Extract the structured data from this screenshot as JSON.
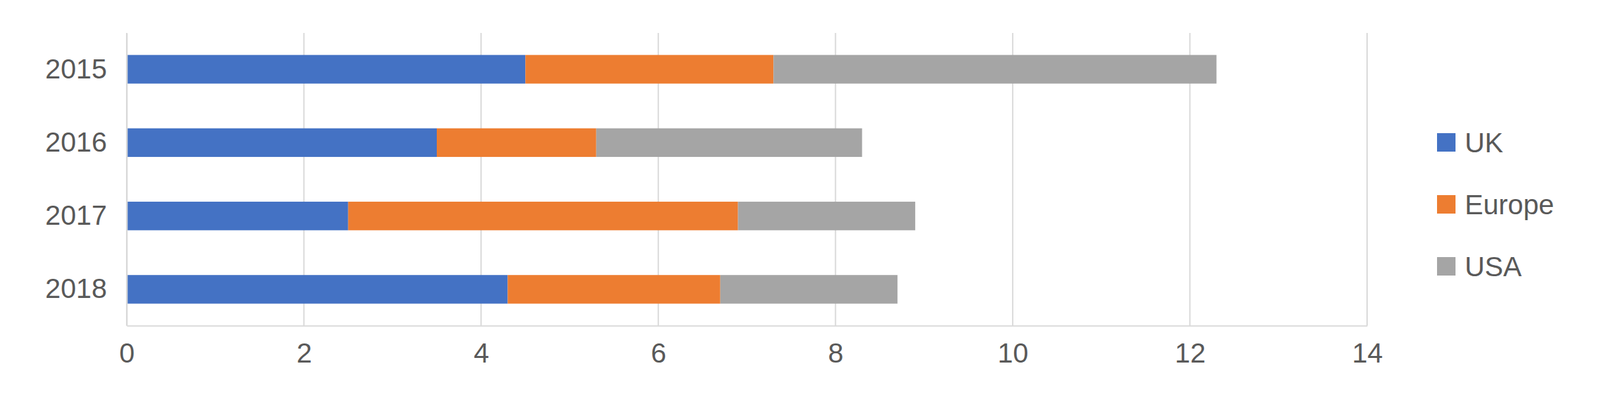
{
  "chart_data": {
    "type": "bar",
    "orientation": "horizontal",
    "stacked": true,
    "grid": true,
    "legend": "right",
    "categories": [
      "2015",
      "2016",
      "2017",
      "2018"
    ],
    "series": [
      {
        "name": "UK",
        "color": "#4472c4",
        "values": [
          4.5,
          3.5,
          2.5,
          4.3
        ]
      },
      {
        "name": "Europe",
        "color": "#ed7d31",
        "values": [
          2.8,
          1.8,
          4.4,
          2.4
        ]
      },
      {
        "name": "USA",
        "color": "#a5a5a5",
        "values": [
          5.0,
          3.0,
          2.0,
          2.0
        ]
      }
    ],
    "xlim": [
      0,
      14
    ],
    "xticks": [
      0,
      2,
      4,
      6,
      8,
      10,
      12,
      14
    ]
  }
}
